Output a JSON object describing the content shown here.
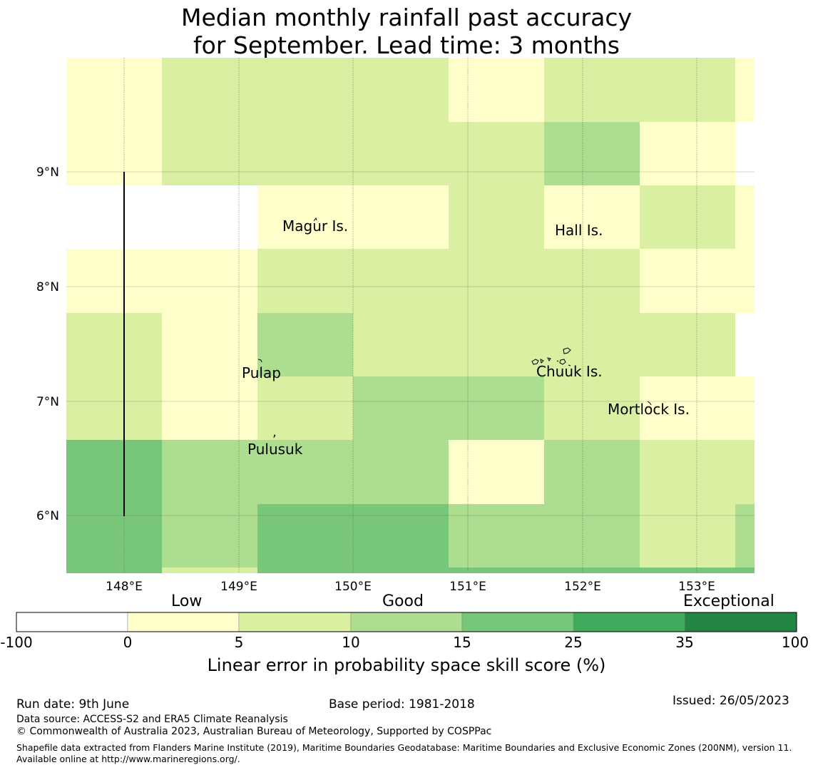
{
  "title": {
    "line1": "Median monthly rainfall past accuracy",
    "line2": "for September. Lead time: 3 months"
  },
  "map": {
    "lon_ticks": [
      "148°E",
      "149°E",
      "150°E",
      "151°E",
      "152°E",
      "153°E"
    ],
    "lat_ticks": [
      "9°N",
      "8°N",
      "7°N",
      "6°N"
    ],
    "place_labels": [
      "Magur Is.",
      "Hall Is.",
      "Pulap",
      "Chuuk Is.",
      "Mortlock Is.",
      "Pulusuk"
    ],
    "colors": {
      "white": "#ffffff",
      "c0_5": "#ffffcc",
      "c5_10": "#d9f0a3",
      "c10_15": "#addd8e",
      "c15_25": "#78c679",
      "c25_35": "#41ab5d",
      "c35_100": "#238443"
    },
    "grid": [
      [
        "c0_5",
        "c5_10",
        "c5_10",
        "c5_10",
        "c0_5",
        "c5_10",
        "c5_10",
        "c0_5"
      ],
      [
        "c0_5",
        "c5_10",
        "c5_10",
        "c5_10",
        "c5_10",
        "c10_15",
        "c0_5",
        "white"
      ],
      [
        "white",
        "white",
        "c0_5",
        "c0_5",
        "c5_10",
        "c0_5",
        "c5_10",
        "c0_5"
      ],
      [
        "c0_5",
        "c0_5",
        "c5_10",
        "c5_10",
        "c5_10",
        "c5_10",
        "c0_5",
        "c0_5"
      ],
      [
        "c5_10",
        "c0_5",
        "c10_15",
        "c5_10",
        "c5_10",
        "c5_10",
        "c5_10",
        "white"
      ],
      [
        "c5_10",
        "c0_5",
        "c5_10",
        "c10_15",
        "c10_15",
        "c5_10",
        "c0_5",
        "c0_5"
      ],
      [
        "c15_25",
        "c10_15",
        "c10_15",
        "c10_15",
        "c0_5",
        "c10_15",
        "c5_10",
        "c5_10"
      ],
      [
        "c15_25",
        "c10_15",
        "c15_25",
        "c15_25",
        "c10_15",
        "c10_15",
        "c5_10",
        "c10_15"
      ],
      [
        "c15_25",
        "c5_10",
        "c15_25",
        "c15_25",
        "c15_25",
        "c15_25",
        "c15_25",
        "c15_25"
      ]
    ]
  },
  "colorbar": {
    "category_labels": [
      "Low",
      "Good",
      "Exceptional"
    ],
    "ticks": [
      "-100",
      "0",
      "5",
      "10",
      "15",
      "25",
      "35",
      "100"
    ],
    "segment_colors": [
      "#ffffff",
      "#ffffcc",
      "#d9f0a3",
      "#addd8e",
      "#78c679",
      "#41ab5d",
      "#238443"
    ],
    "axis_label": "Linear error in probability space skill score (%)"
  },
  "footer": {
    "run_date": "Run date: 9th June",
    "base_period": "Base period: 1981-2018",
    "issued": "Issued: 26/05/2023",
    "data_source": "Data source: ACCESS-S2 and ERA5 Climate Reanalysis",
    "copyright": "© Commonwealth of Australia 2023, Australian Bureau of Meteorology, Supported by COSPPac",
    "shapefile": "Shapefile data extracted from Flanders Marine Institute (2019), Maritime Boundaries Geodatabase: Maritime Boundaries and Exclusive Economic Zones (200NM), version 11. Available online at http://www.marineregions.org/."
  }
}
